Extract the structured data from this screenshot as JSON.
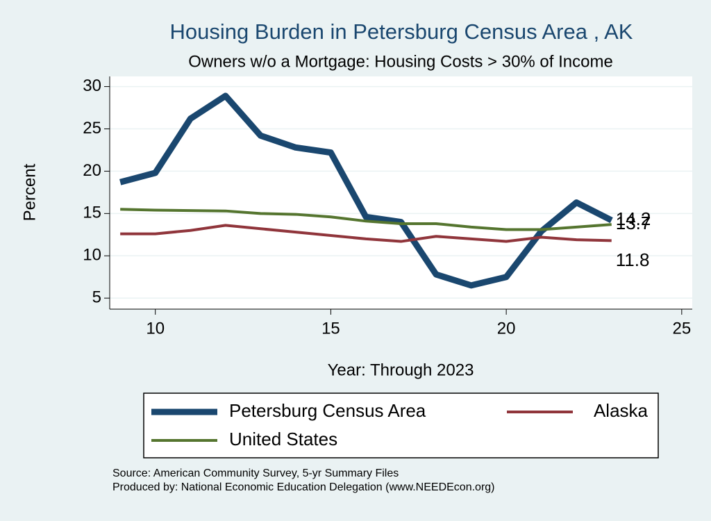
{
  "chart_data": {
    "type": "line",
    "title": "Housing Burden in Petersburg Census Area , AK",
    "subtitle": "Owners w/o a Mortgage: Housing Costs > 30% of Income",
    "x_label": "Year: Through 2023",
    "y_label": "Percent",
    "x": [
      9,
      10,
      11,
      12,
      13,
      14,
      15,
      16,
      17,
      18,
      19,
      20,
      21,
      22,
      23
    ],
    "series": [
      {
        "name": "Petersburg Census Area",
        "color": "#1a476f",
        "width": 9,
        "values": [
          18.7,
          19.8,
          26.2,
          28.9,
          24.2,
          22.8,
          22.2,
          14.6,
          14.0,
          7.8,
          6.5,
          7.5,
          12.9,
          16.3,
          14.2
        ]
      },
      {
        "name": "Alaska",
        "color": "#90353b",
        "width": 4,
        "values": [
          12.6,
          12.6,
          13.0,
          13.6,
          13.2,
          12.8,
          12.4,
          12.0,
          11.7,
          12.3,
          12.0,
          11.7,
          12.2,
          11.9,
          11.8
        ]
      },
      {
        "name": "United States",
        "color": "#55752f",
        "width": 4,
        "values": [
          15.5,
          15.4,
          15.35,
          15.3,
          15.0,
          14.9,
          14.6,
          14.1,
          13.8,
          13.8,
          13.4,
          13.1,
          13.1,
          13.4,
          13.7
        ]
      }
    ],
    "xlim": [
      8.7,
      25.3
    ],
    "ylim": [
      3.7,
      31.2
    ],
    "xticks": [
      10,
      15,
      20,
      25
    ],
    "yticks": [
      5,
      10,
      15,
      20,
      25,
      30
    ],
    "grid": true,
    "legend_position": "bottom",
    "notes": [
      "Source: American Community Survey, 5-yr Summary Files",
      "Produced by: National Economic Education Delegation (www.NEEDEcon.org)"
    ]
  }
}
